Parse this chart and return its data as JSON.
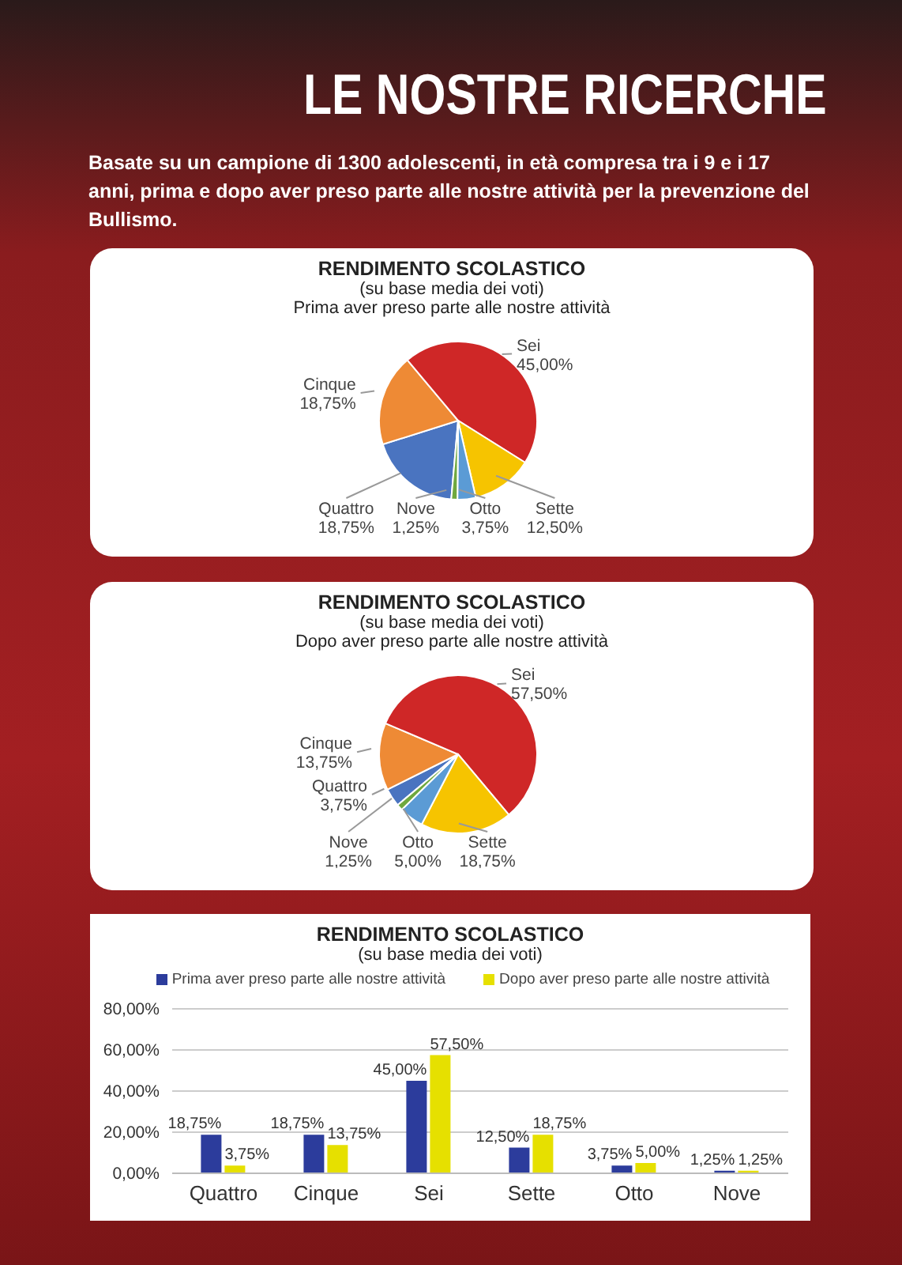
{
  "chart_data": [
    {
      "type": "pie",
      "title": "RENDIMENTO SCOLASTICO",
      "subtitle": "(su base media dei voti)",
      "annotations": [
        "LE NOSTRE RICERCHE",
        "Basate su un campione di 1300 adolescenti, in età compresa tra i 9 e i 17 anni, prima e dopo aver preso parte alle nostre attività per la prevenzione del Bullismo.",
        "Prima aver preso parte alle nostre attività"
      ],
      "categories": [
        "Quattro",
        "Cinque",
        "Sei",
        "Sette",
        "Otto",
        "Nove"
      ],
      "values": [
        18.75,
        18.75,
        45,
        12.5,
        3.75,
        1.25
      ],
      "value_labels": [
        "18,75%",
        "18,75%",
        "45,00%",
        "12,50%",
        "3,75%",
        "1,25%"
      ],
      "colors": [
        "#4a74c0",
        "#ee8a35",
        "#cf2727",
        "#f6c400",
        "#5b9bd5",
        "#6fa83e"
      ]
    },
    {
      "type": "pie",
      "title": "RENDIMENTO SCOLASTICO",
      "subtitle": "(su base media dei voti)",
      "annotations": [
        "Dopo aver preso parte alle nostre attività"
      ],
      "categories": [
        "Quattro",
        "Cinque",
        "Sei",
        "Sette",
        "Otto",
        "Nove"
      ],
      "values": [
        3.75,
        13.75,
        57.5,
        18.75,
        5,
        1.25
      ],
      "value_labels": [
        "3,75%",
        "13,75%",
        "57,50%",
        "18,75%",
        "5,00%",
        "1,25%"
      ],
      "colors": [
        "#4a74c0",
        "#ee8a35",
        "#cf2727",
        "#f6c400",
        "#5b9bd5",
        "#6fa83e"
      ]
    },
    {
      "type": "bar",
      "title": "RENDIMENTO SCOLASTICO",
      "subtitle": "(su base media dei voti)",
      "categories": [
        "Quattro",
        "Cinque",
        "Sei",
        "Sette",
        "Otto",
        "Nove"
      ],
      "series": [
        {
          "name": "Prima aver preso parte alle nostre attività",
          "color": "#2c3c9c",
          "values": [
            18.75,
            18.75,
            45,
            12.5,
            3.75,
            1.25
          ],
          "value_labels": [
            "18,75%",
            "18,75%",
            "45,00%",
            "12,50%",
            "3,75%",
            "1,25%"
          ]
        },
        {
          "name": "Dopo aver preso parte alle nostre attività",
          "color": "#e6e000",
          "values": [
            3.75,
            13.75,
            57.5,
            18.75,
            5,
            1.25
          ],
          "value_labels": [
            "3,75%",
            "13,75%",
            "57,50%",
            "18,75%",
            "5,00%",
            "1,25%"
          ]
        }
      ],
      "ylim": [
        0,
        80
      ],
      "yticks": [
        {
          "value": 0,
          "label": "0,00%"
        },
        {
          "value": 20,
          "label": "20,00%"
        },
        {
          "value": 40,
          "label": "40,00%"
        },
        {
          "value": 60,
          "label": "60,00%"
        },
        {
          "value": 80,
          "label": "80,00%"
        }
      ],
      "grid": "y",
      "legend": "top"
    }
  ]
}
